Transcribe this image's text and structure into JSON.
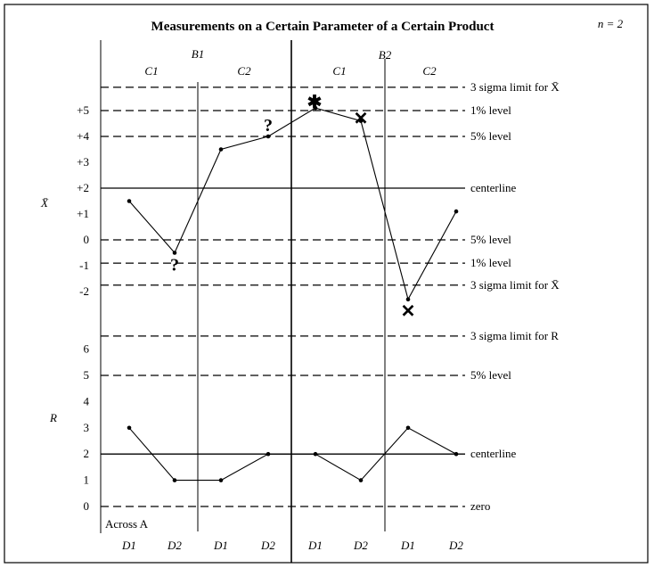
{
  "chart_data": {
    "type": "line",
    "title": "Measurements on a Certain Parameter of a Certain Product",
    "sample_size_label": "n = 2",
    "b_labels": [
      "B1",
      "B2"
    ],
    "c_labels": [
      "C1",
      "C2",
      "C1",
      "C2"
    ],
    "x_tick_labels": [
      "D1",
      "D2",
      "D1",
      "D2",
      "D1",
      "D2",
      "D1",
      "D2"
    ],
    "across_label": "Across A",
    "xbar_chart": {
      "ylabel": "X̄",
      "ylim": [
        -3,
        6
      ],
      "tick_labels": [
        "+5",
        "+4",
        "+3",
        "+2",
        "+1",
        "0",
        "-1",
        "-2"
      ],
      "tick_values": [
        5,
        4,
        3,
        2,
        1,
        0,
        -1,
        -2
      ],
      "values": [
        1.5,
        -0.5,
        3.5,
        4.0,
        5.1,
        4.6,
        -2.3,
        1.1
      ],
      "centerline": {
        "value": 2.0,
        "label": "centerline"
      },
      "limit_lines": [
        {
          "value": 5.9,
          "label": "3 sigma limit for X̄",
          "style": "dashed"
        },
        {
          "value": 5.0,
          "label": "1% level",
          "style": "dashed"
        },
        {
          "value": 4.0,
          "label": "5% level",
          "style": "dashed"
        },
        {
          "value": 0.0,
          "label": "5% level",
          "style": "dashed"
        },
        {
          "value": -0.9,
          "label": "1% level",
          "style": "dashed"
        },
        {
          "value": -1.75,
          "label": "3 sigma limit for X̄",
          "style": "dashed"
        }
      ],
      "markers": [
        {
          "point_index": 1,
          "symbol": "?"
        },
        {
          "point_index": 3,
          "symbol": "?"
        },
        {
          "point_index": 4,
          "symbol": "✱"
        },
        {
          "point_index": 5,
          "symbol": "✕"
        },
        {
          "point_index": 6,
          "symbol": "✕"
        }
      ]
    },
    "r_chart": {
      "ylabel": "R",
      "ylim": [
        0,
        6.5
      ],
      "tick_labels": [
        "6",
        "5",
        "4",
        "3",
        "2",
        "1",
        "0"
      ],
      "tick_values": [
        6,
        5,
        4,
        3,
        2,
        1,
        0
      ],
      "values": [
        3,
        1,
        1,
        2,
        2,
        1,
        3,
        2
      ],
      "centerline": {
        "value": 2.0,
        "label": "centerline"
      },
      "limit_lines": [
        {
          "value": 6.5,
          "label": "3 sigma limit for R",
          "style": "dashed"
        },
        {
          "value": 5.0,
          "label": "5% level",
          "style": "dashed"
        },
        {
          "value": 0.0,
          "label": "zero",
          "style": "dashed"
        }
      ]
    },
    "grid": false,
    "legend": "none"
  }
}
